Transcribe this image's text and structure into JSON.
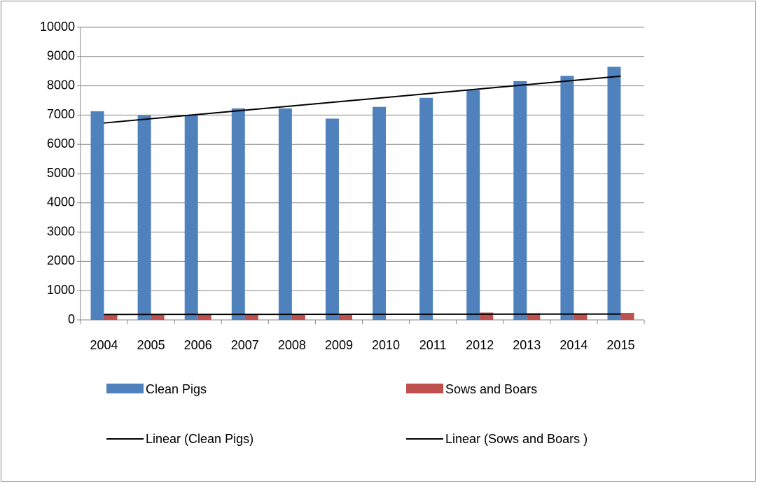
{
  "chart_data": {
    "type": "bar",
    "categories": [
      "2004",
      "2005",
      "2006",
      "2007",
      "2008",
      "2009",
      "2010",
      "2011",
      "2012",
      "2013",
      "2014",
      "2015"
    ],
    "series": [
      {
        "name": "Clean Pigs",
        "color": "#4f81bd",
        "values": [
          7130,
          6990,
          7000,
          7230,
          7230,
          6880,
          7280,
          7590,
          7850,
          8160,
          8340,
          8650
        ]
      },
      {
        "name": "Sows and Boars",
        "color": "#c0504d",
        "values": [
          200,
          180,
          180,
          190,
          210,
          180,
          null,
          null,
          250,
          230,
          220,
          240
        ]
      }
    ],
    "trendlines": [
      {
        "name": "Linear (Clean Pigs)",
        "color": "#000000",
        "values": [
          6730,
          8330
        ]
      },
      {
        "name": "Linear (Sows and Boars )",
        "color": "#000000",
        "values": [
          185,
          200
        ]
      }
    ],
    "ylim": [
      0,
      10000
    ],
    "yticks": [
      0,
      1000,
      2000,
      3000,
      4000,
      5000,
      6000,
      7000,
      8000,
      9000,
      10000
    ],
    "grid": true
  }
}
